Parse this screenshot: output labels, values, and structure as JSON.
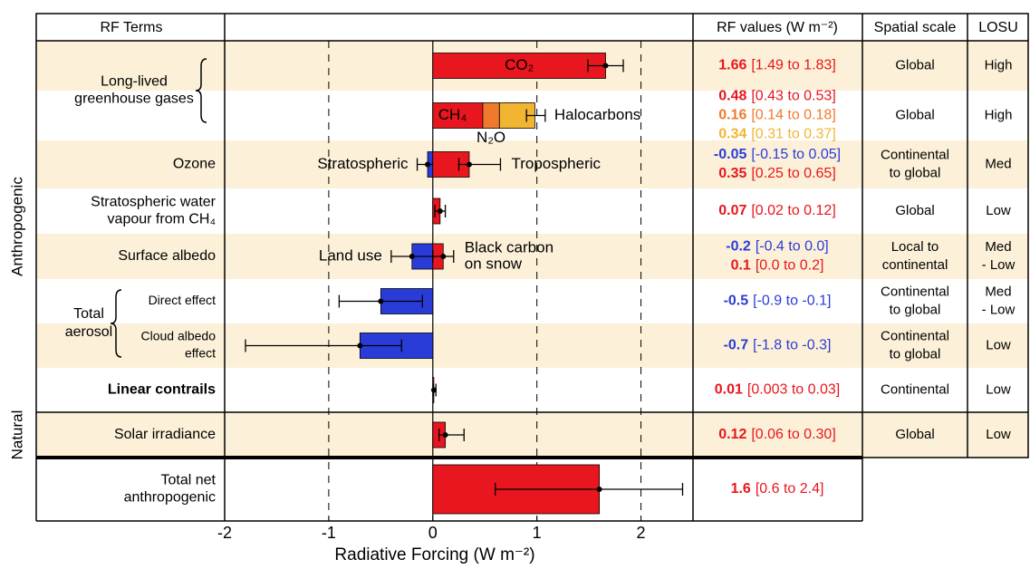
{
  "chart_data": {
    "type": "bar",
    "orientation": "horizontal",
    "headers": {
      "terms": "RF Terms",
      "rf_values": "RF values (W m⁻²)",
      "spatial": "Spatial scale",
      "losu": "LOSU"
    },
    "groups": [
      "Anthropogenic",
      "Natural"
    ],
    "aerosol_label": [
      "Total",
      "aerosol"
    ],
    "xlabel": "Radiative Forcing  (W m⁻²)",
    "xlim": [
      -2,
      2.5
    ],
    "xticks": [
      -2,
      -1,
      0,
      1,
      2
    ],
    "grid": true,
    "rows": [
      {
        "term": [
          "Long-lived",
          "greenhouse gases"
        ],
        "series": [
          {
            "name": "CO₂",
            "color": "#e8161e",
            "value": 1.66,
            "low": 1.49,
            "high": 1.83,
            "range_label": "[1.49 to 1.83]"
          }
        ],
        "spatial": [
          "Global"
        ],
        "losu": [
          "High"
        ]
      },
      {
        "series": [
          {
            "name": "CH₄",
            "color": "#e8161e",
            "value": 0.48,
            "range_label": "[0.43 to 0.53]"
          },
          {
            "name": "N₂O",
            "color": "#f07a2c",
            "value": 0.16,
            "range_label": "[0.14 to 0.18]"
          },
          {
            "name": "Halocarbons",
            "color": "#f2b531",
            "value": 0.34,
            "range_label": "[0.31 to 0.37]"
          }
        ],
        "error": {
          "low": 0.9,
          "high": 1.08
        },
        "spatial": [
          "Global"
        ],
        "losu": [
          "High"
        ]
      },
      {
        "term": [
          "Ozone"
        ],
        "series": [
          {
            "name": [
              "Stratospheric"
            ],
            "color": "#2a3cd8",
            "value": -0.05,
            "low": -0.15,
            "high": 0.05,
            "range_label": "[-0.15 to 0.05]"
          },
          {
            "name": [
              "Tropospheric"
            ],
            "color": "#e8161e",
            "value": 0.35,
            "low": 0.25,
            "high": 0.65,
            "range_label": "[0.25 to 0.65]"
          }
        ],
        "spatial": [
          "Continental",
          "to global"
        ],
        "losu": [
          "Med"
        ]
      },
      {
        "term": [
          "Stratospheric water",
          "vapour from CH₄"
        ],
        "series": [
          {
            "color": "#e8161e",
            "value": 0.07,
            "low": 0.02,
            "high": 0.12,
            "range_label": "[0.02 to 0.12]"
          }
        ],
        "spatial": [
          "Global"
        ],
        "losu": [
          "Low"
        ]
      },
      {
        "term": [
          "Surface albedo"
        ],
        "series": [
          {
            "name": [
              "Land use"
            ],
            "color": "#2a3cd8",
            "value": -0.2,
            "low": -0.4,
            "high": 0.0,
            "range_label": "[-0.4 to 0.0]"
          },
          {
            "name": [
              "Black carbon",
              "on snow"
            ],
            "color": "#e8161e",
            "value": 0.1,
            "low": 0.0,
            "high": 0.2,
            "range_label": "[0.0 to 0.2]"
          }
        ],
        "spatial": [
          "Local to",
          "continental"
        ],
        "losu": [
          "Med",
          "- Low"
        ]
      },
      {
        "term": [
          "Direct effect"
        ],
        "series": [
          {
            "color": "#2a3cd8",
            "value": -0.5,
            "low": -0.9,
            "high": -0.1,
            "range_label": "[-0.9 to -0.1]"
          }
        ],
        "spatial": [
          "Continental",
          "to global"
        ],
        "losu": [
          "Med",
          "- Low"
        ]
      },
      {
        "term": [
          "Cloud albedo",
          "effect"
        ],
        "series": [
          {
            "color": "#2a3cd8",
            "value": -0.7,
            "low": -1.8,
            "high": -0.3,
            "range_label": "[-1.8 to -0.3]"
          }
        ],
        "spatial": [
          "Continental",
          "to global"
        ],
        "losu": [
          "Low"
        ]
      },
      {
        "term": [
          "Linear contrails"
        ],
        "bold": true,
        "series": [
          {
            "color": "#e8161e",
            "value": 0.01,
            "low": 0.003,
            "high": 0.03,
            "range_label": "[0.003 to 0.03]"
          }
        ],
        "spatial": [
          "Continental"
        ],
        "losu": [
          "Low"
        ]
      },
      {
        "term": [
          "Solar irradiance"
        ],
        "series": [
          {
            "color": "#e8161e",
            "value": 0.12,
            "low": 0.06,
            "high": 0.3,
            "range_label": "[0.06 to 0.30]"
          }
        ],
        "spatial": [
          "Global"
        ],
        "losu": [
          "Low"
        ]
      },
      {
        "term": [
          "Total net",
          "anthropogenic"
        ],
        "series": [
          {
            "color": "#e8161e",
            "value": 1.6,
            "low": 0.6,
            "high": 2.4,
            "range_label": "[0.6 to 2.4]"
          }
        ]
      }
    ]
  }
}
